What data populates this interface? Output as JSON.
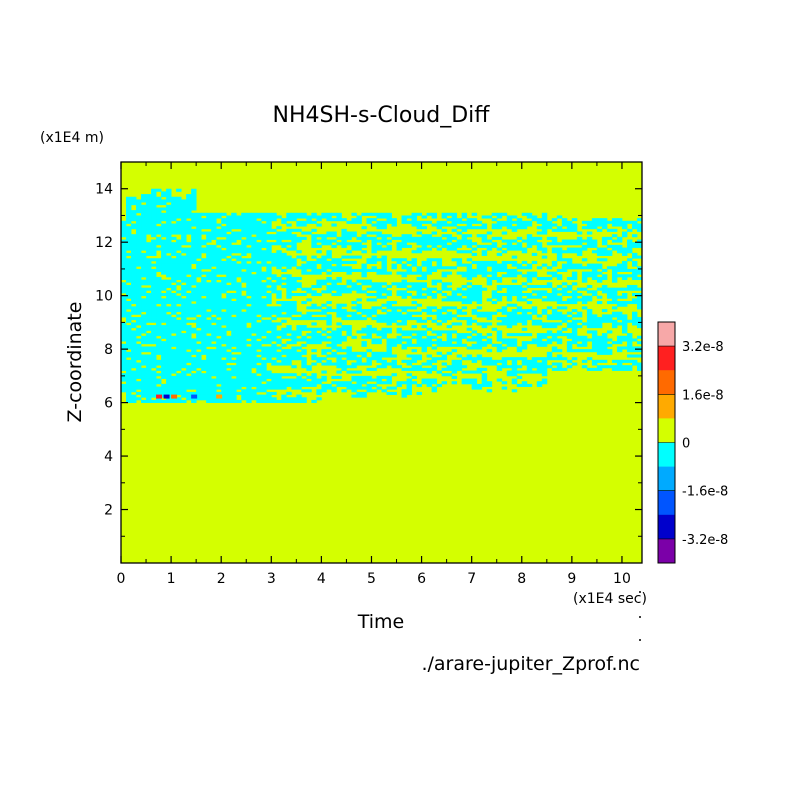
{
  "chart_data": {
    "type": "heatmap",
    "title": "NH4SH-s-Cloud_Diff",
    "xlabel": "Time",
    "ylabel": "Z-coordinate",
    "x_unit": "(x1E4 sec)",
    "y_unit": "(x1E4 m)",
    "xlim": [
      0,
      10.4
    ],
    "ylim": [
      0,
      15
    ],
    "x_ticks": [
      "0",
      "1",
      "2",
      "3",
      "4",
      "5",
      "6",
      "7",
      "8",
      "9",
      "10"
    ],
    "y_ticks": [
      "2",
      "4",
      "6",
      "8",
      "10",
      "12",
      "14"
    ],
    "source": "./arare-jupiter_Zprof.nc",
    "colorbar": {
      "labels": [
        "3.2e-8",
        "1.6e-8",
        "0",
        "-1.6e-8",
        "-3.2e-8"
      ],
      "colors": [
        "#f7a8a8",
        "#ff2020",
        "#ff6a00",
        "#ffaa00",
        "#d4ff00",
        "#00ffff",
        "#00aaff",
        "#0055ff",
        "#0000cc",
        "#7b00a8"
      ]
    },
    "background_value_color": "#d4ff00",
    "region_summary": [
      {
        "desc": "negative band (cyan)",
        "t_start": 0,
        "t_end": 10.4,
        "z_low_approx": [
          6.2,
          7.2
        ],
        "z_high_approx": [
          13.0,
          14.0
        ]
      },
      {
        "desc": "strong extremes near t=0.5-2",
        "z": 6.2
      }
    ]
  }
}
